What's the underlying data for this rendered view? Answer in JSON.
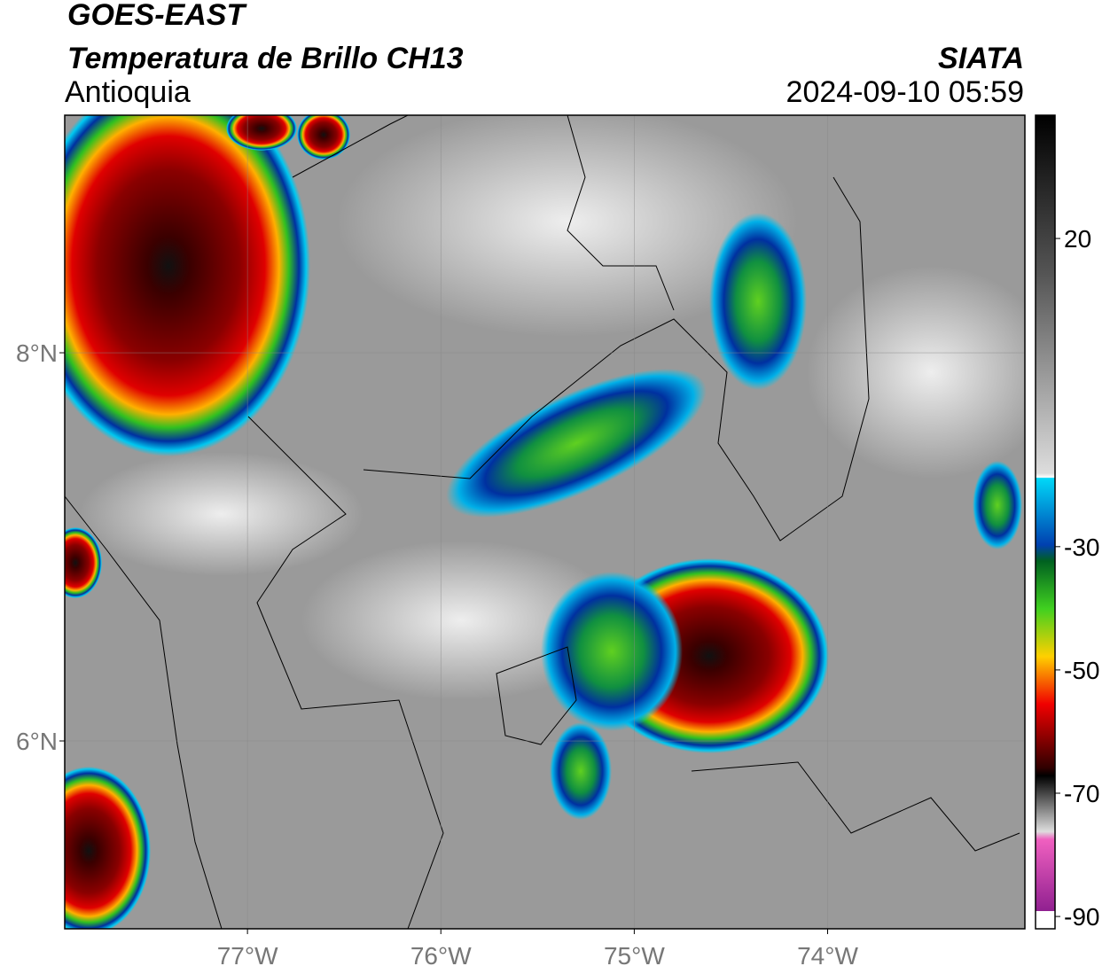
{
  "header": {
    "satellite": "GOES-EAST",
    "product": "Temperatura de Brillo CH13",
    "region": "Antioquia",
    "source": "SIATA",
    "datetime": "2024-09-10 05:59"
  },
  "map": {
    "xlim": [
      -77.945,
      -72.98
    ],
    "ylim": [
      5.032,
      9.224
    ],
    "xticks": [
      {
        "value": -77,
        "label": "77°W"
      },
      {
        "value": -76,
        "label": "76°W"
      },
      {
        "value": -75,
        "label": "75°W"
      },
      {
        "value": -74,
        "label": "74°W"
      }
    ],
    "yticks": [
      {
        "value": 8,
        "label": "8°N"
      },
      {
        "value": 6,
        "label": "6°N"
      }
    ]
  },
  "colorbar": {
    "lim": [
      -92,
      40
    ],
    "ticks": [
      20,
      -30,
      -50,
      -70,
      -90
    ]
  }
}
